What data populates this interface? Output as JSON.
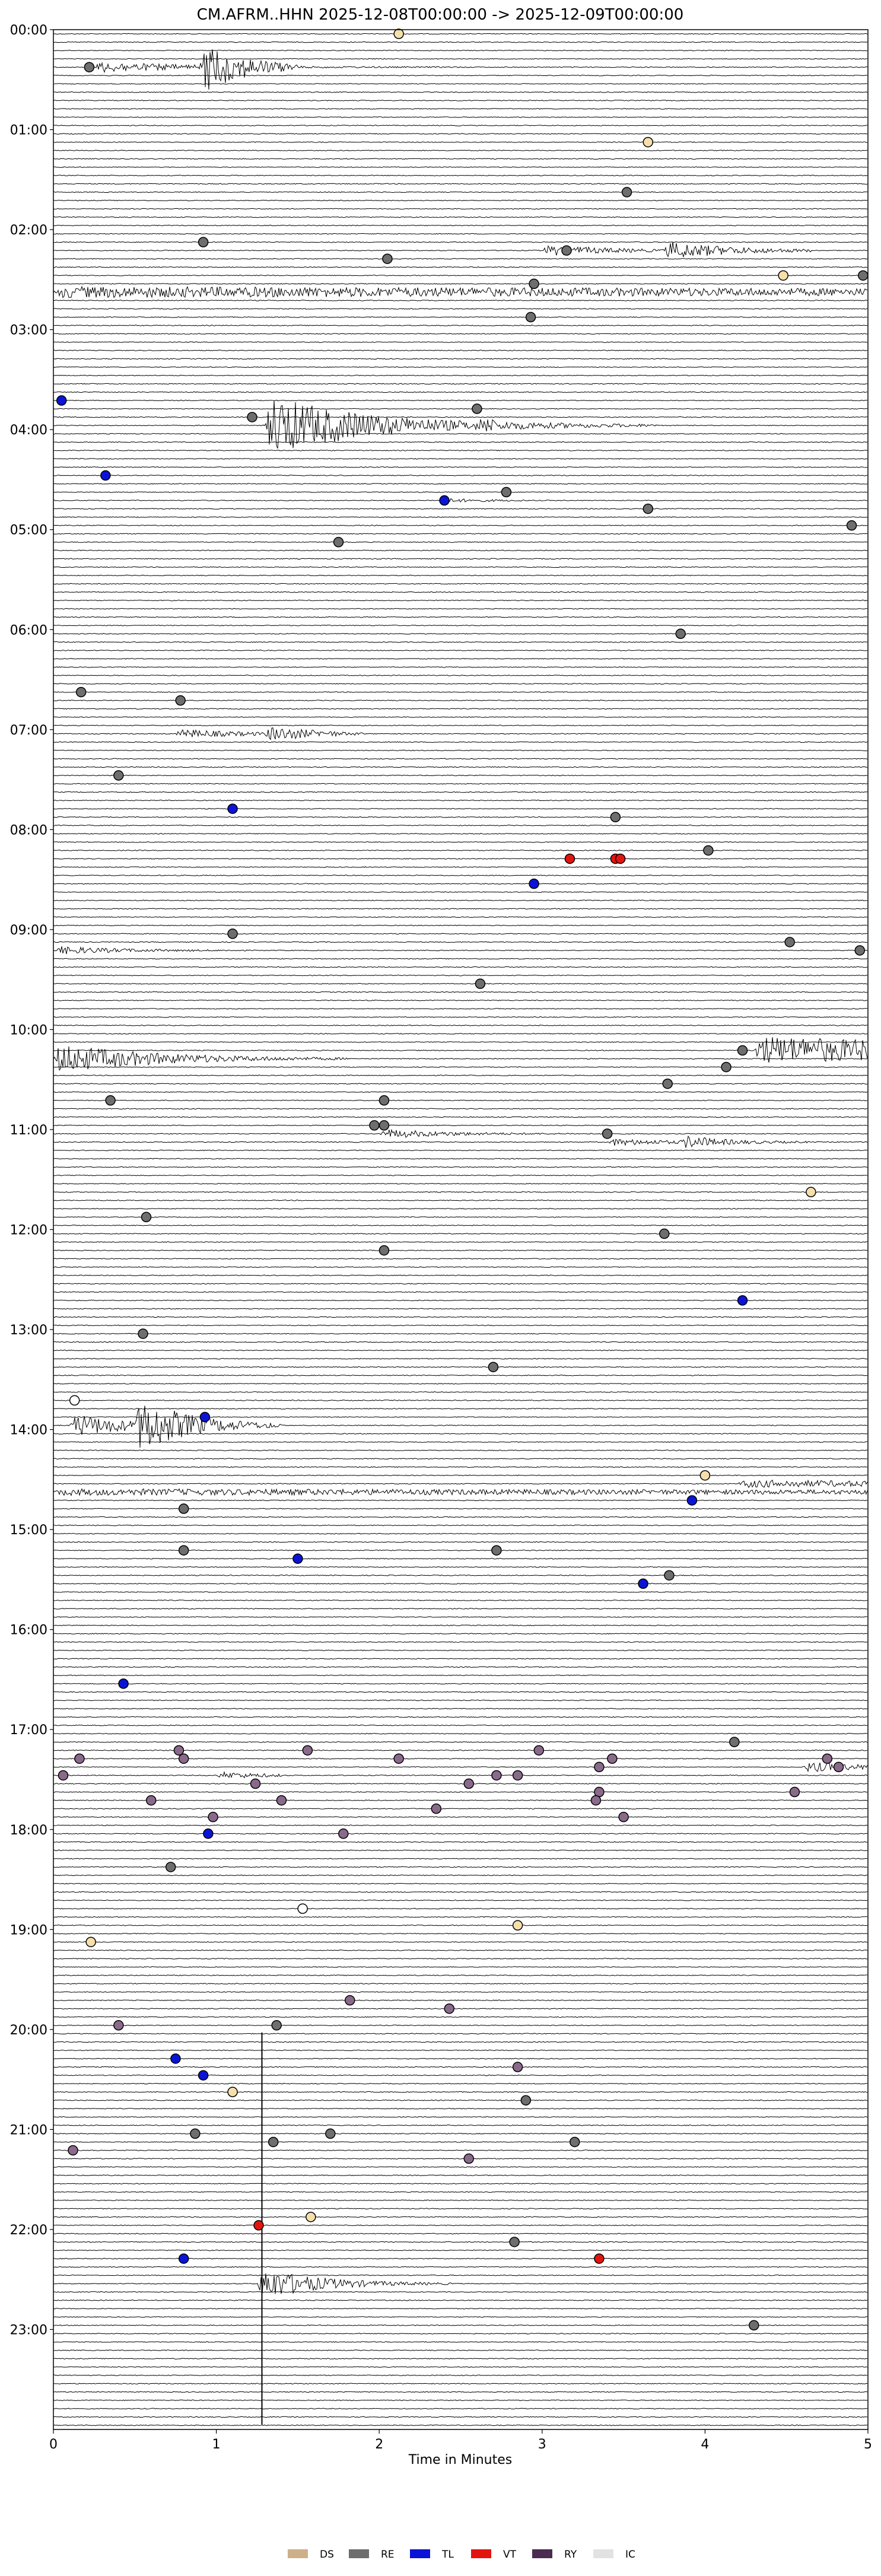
{
  "chart_data": {
    "type": "line",
    "title": "CM.AFRM..HHN  2025-12-08T00:00:00 -> 2025-12-09T00:00:00",
    "xlabel": "Time in Minutes",
    "ylabel": "",
    "xlim": [
      0,
      5
    ],
    "x_ticks": [
      "0",
      "1",
      "2",
      "3",
      "4",
      "5"
    ],
    "ylim_hours": [
      0,
      24
    ],
    "trace_minutes": 5,
    "y_ticks": [
      "00:00",
      "01:00",
      "02:00",
      "03:00",
      "04:00",
      "05:00",
      "06:00",
      "07:00",
      "08:00",
      "09:00",
      "10:00",
      "11:00",
      "12:00",
      "13:00",
      "14:00",
      "15:00",
      "16:00",
      "17:00",
      "18:00",
      "19:00",
      "20:00",
      "21:00",
      "22:00",
      "23:00"
    ],
    "grid": false,
    "legend_position": "bottom-center",
    "legend": [
      {
        "code": "DS",
        "color": "#cdb08a"
      },
      {
        "code": "RE",
        "color": "#6e6e6e"
      },
      {
        "code": "TL",
        "color": "#0b14d6"
      },
      {
        "code": "VT",
        "color": "#e3140f"
      },
      {
        "code": "RY",
        "color": "#4b2b52"
      },
      {
        "code": "IC",
        "color": "#e2e2e2"
      }
    ],
    "class_colors": {
      "DS": "#cdb08a",
      "RE": "#6e6e6e",
      "TL": "#0b14d6",
      "VT": "#e3140f",
      "RY": "#4b2b52",
      "IC": "#e2e2e2",
      "DS_light": "#f5dfaa",
      "RY_light": "#8a6a8a",
      "WH": "#ffffff"
    },
    "bursts": [
      {
        "row": 4,
        "x": 0.25,
        "amp": 9,
        "len": 2.3,
        "decay": 0.6
      },
      {
        "row": 4,
        "x": 0.9,
        "amp": 45,
        "len": 0.6,
        "decay": 0.25
      },
      {
        "row": 26,
        "x": 3.0,
        "amp": 10,
        "len": 0.8,
        "decay": 0.4
      },
      {
        "row": 26,
        "x": 3.75,
        "amp": 16,
        "len": 0.9,
        "decay": 0.4
      },
      {
        "row": 31,
        "x": 0.0,
        "amp": 9,
        "len": 5,
        "decay": 10
      },
      {
        "row": 47,
        "x": 1.3,
        "amp": 55,
        "len": 1.4,
        "decay": 0.6
      },
      {
        "row": 47,
        "x": 2.6,
        "amp": 9,
        "len": 1.1,
        "decay": 0.6
      },
      {
        "row": 56,
        "x": 2.4,
        "amp": 3,
        "len": 0.5,
        "decay": 0.3
      },
      {
        "row": 84,
        "x": 0.75,
        "amp": 8,
        "len": 1.0,
        "decay": 0.4
      },
      {
        "row": 84,
        "x": 1.3,
        "amp": 12,
        "len": 0.6,
        "decay": 0.3
      },
      {
        "row": 110,
        "x": 0.0,
        "amp": 7,
        "len": 1.2,
        "decay": 0.4
      },
      {
        "row": 123,
        "x": 0.0,
        "amp": 26,
        "len": 1.8,
        "decay": 0.6
      },
      {
        "row": 122,
        "x": 4.3,
        "amp": 24,
        "len": 0.8,
        "decay": 2
      },
      {
        "row": 132,
        "x": 2.0,
        "amp": 8,
        "len": 1.6,
        "decay": 0.4
      },
      {
        "row": 133,
        "x": 3.4,
        "amp": 6,
        "len": 0.6,
        "decay": 0.4
      },
      {
        "row": 133,
        "x": 3.85,
        "amp": 10,
        "len": 0.8,
        "decay": 0.3
      },
      {
        "row": 167,
        "x": 0.1,
        "amp": 20,
        "len": 1.3,
        "decay": 0.4
      },
      {
        "row": 167,
        "x": 0.5,
        "amp": 45,
        "len": 0.9,
        "decay": 0.3
      },
      {
        "row": 175,
        "x": 0.0,
        "amp": 5,
        "len": 5,
        "decay": 10
      },
      {
        "row": 174,
        "x": 4.2,
        "amp": 6,
        "len": 0.8,
        "decay": 2
      },
      {
        "row": 208,
        "x": 4.6,
        "amp": 9,
        "len": 0.4,
        "decay": 0.4
      },
      {
        "row": 209,
        "x": 1.0,
        "amp": 6,
        "len": 0.4,
        "decay": 0.3
      },
      {
        "row": 270,
        "x": 1.25,
        "amp": 30,
        "len": 1.2,
        "decay": 0.35
      }
    ],
    "spike": {
      "x": 1.28,
      "from_hour": 20.03,
      "to_hour": 23.95
    },
    "events": [
      {
        "row": 0,
        "x": 2.12,
        "c": "DS_light"
      },
      {
        "row": 4,
        "x": 0.22,
        "c": "RE"
      },
      {
        "row": 13,
        "x": 3.65,
        "c": "DS_light"
      },
      {
        "row": 19,
        "x": 3.52,
        "c": "RE"
      },
      {
        "row": 25,
        "x": 0.92,
        "c": "RE"
      },
      {
        "row": 27,
        "x": 2.05,
        "c": "RE"
      },
      {
        "row": 26,
        "x": 3.15,
        "c": "RE"
      },
      {
        "row": 29,
        "x": 4.48,
        "c": "DS_light"
      },
      {
        "row": 29,
        "x": 4.97,
        "c": "RE"
      },
      {
        "row": 30,
        "x": 2.95,
        "c": "RE"
      },
      {
        "row": 34,
        "x": 2.93,
        "c": "RE"
      },
      {
        "row": 44,
        "x": 0.05,
        "c": "TL"
      },
      {
        "row": 46,
        "x": 1.22,
        "c": "RE"
      },
      {
        "row": 45,
        "x": 2.6,
        "c": "RE"
      },
      {
        "row": 53,
        "x": 0.32,
        "c": "TL"
      },
      {
        "row": 55,
        "x": 2.78,
        "c": "RE"
      },
      {
        "row": 56,
        "x": 2.4,
        "c": "TL"
      },
      {
        "row": 57,
        "x": 3.65,
        "c": "RE"
      },
      {
        "row": 59,
        "x": 4.9,
        "c": "RE"
      },
      {
        "row": 61,
        "x": 1.75,
        "c": "RE"
      },
      {
        "row": 72,
        "x": 3.85,
        "c": "RE"
      },
      {
        "row": 79,
        "x": 0.17,
        "c": "RE"
      },
      {
        "row": 80,
        "x": 0.78,
        "c": "RE"
      },
      {
        "row": 89,
        "x": 0.4,
        "c": "RE"
      },
      {
        "row": 93,
        "x": 1.1,
        "c": "TL"
      },
      {
        "row": 94,
        "x": 3.45,
        "c": "RE"
      },
      {
        "row": 98,
        "x": 4.02,
        "c": "RE"
      },
      {
        "row": 99,
        "x": 3.17,
        "c": "VT"
      },
      {
        "row": 99,
        "x": 3.45,
        "c": "VT"
      },
      {
        "row": 99,
        "x": 3.48,
        "c": "VT"
      },
      {
        "row": 102,
        "x": 2.95,
        "c": "TL"
      },
      {
        "row": 108,
        "x": 1.1,
        "c": "RE"
      },
      {
        "row": 109,
        "x": 4.52,
        "c": "RE"
      },
      {
        "row": 110,
        "x": 4.95,
        "c": "RE"
      },
      {
        "row": 114,
        "x": 2.62,
        "c": "RE"
      },
      {
        "row": 122,
        "x": 4.23,
        "c": "RE"
      },
      {
        "row": 124,
        "x": 4.13,
        "c": "RE"
      },
      {
        "row": 126,
        "x": 3.77,
        "c": "RE"
      },
      {
        "row": 128,
        "x": 0.35,
        "c": "RE"
      },
      {
        "row": 128,
        "x": 2.03,
        "c": "RE"
      },
      {
        "row": 131,
        "x": 1.97,
        "c": "RE"
      },
      {
        "row": 131,
        "x": 2.03,
        "c": "RE"
      },
      {
        "row": 132,
        "x": 3.4,
        "c": "RE"
      },
      {
        "row": 139,
        "x": 4.65,
        "c": "DS_light"
      },
      {
        "row": 142,
        "x": 0.57,
        "c": "RE"
      },
      {
        "row": 144,
        "x": 3.75,
        "c": "RE"
      },
      {
        "row": 146,
        "x": 2.03,
        "c": "RE"
      },
      {
        "row": 152,
        "x": 4.23,
        "c": "TL"
      },
      {
        "row": 156,
        "x": 0.55,
        "c": "RE"
      },
      {
        "row": 160,
        "x": 2.7,
        "c": "RE"
      },
      {
        "row": 164,
        "x": 0.13,
        "c": "WH"
      },
      {
        "row": 166,
        "x": 0.93,
        "c": "TL"
      },
      {
        "row": 173,
        "x": 4.0,
        "c": "DS_light"
      },
      {
        "row": 176,
        "x": 3.92,
        "c": "TL"
      },
      {
        "row": 177,
        "x": 0.8,
        "c": "RE"
      },
      {
        "row": 182,
        "x": 0.8,
        "c": "RE"
      },
      {
        "row": 182,
        "x": 2.72,
        "c": "RE"
      },
      {
        "row": 183,
        "x": 1.5,
        "c": "TL"
      },
      {
        "row": 185,
        "x": 3.78,
        "c": "RE"
      },
      {
        "row": 186,
        "x": 3.62,
        "c": "TL"
      },
      {
        "row": 198,
        "x": 0.43,
        "c": "TL"
      },
      {
        "row": 205,
        "x": 4.18,
        "c": "RE"
      },
      {
        "row": 206,
        "x": 0.77,
        "c": "RY_light"
      },
      {
        "row": 206,
        "x": 1.56,
        "c": "RY_light"
      },
      {
        "row": 206,
        "x": 2.98,
        "c": "RY_light"
      },
      {
        "row": 207,
        "x": 0.16,
        "c": "RY_light"
      },
      {
        "row": 207,
        "x": 0.8,
        "c": "RY_light"
      },
      {
        "row": 207,
        "x": 2.12,
        "c": "RY_light"
      },
      {
        "row": 207,
        "x": 3.43,
        "c": "RY_light"
      },
      {
        "row": 207,
        "x": 4.75,
        "c": "RY_light"
      },
      {
        "row": 208,
        "x": 3.35,
        "c": "RY_light"
      },
      {
        "row": 208,
        "x": 4.82,
        "c": "RY_light"
      },
      {
        "row": 209,
        "x": 0.06,
        "c": "RY_light"
      },
      {
        "row": 209,
        "x": 2.72,
        "c": "RY_light"
      },
      {
        "row": 209,
        "x": 2.85,
        "c": "RY_light"
      },
      {
        "row": 210,
        "x": 1.24,
        "c": "RY_light"
      },
      {
        "row": 210,
        "x": 2.55,
        "c": "RY_light"
      },
      {
        "row": 211,
        "x": 3.35,
        "c": "RY_light"
      },
      {
        "row": 211,
        "x": 4.55,
        "c": "RY_light"
      },
      {
        "row": 212,
        "x": 0.6,
        "c": "RY_light"
      },
      {
        "row": 212,
        "x": 3.33,
        "c": "RY_light"
      },
      {
        "row": 212,
        "x": 1.4,
        "c": "RY_light"
      },
      {
        "row": 213,
        "x": 2.35,
        "c": "RY_light"
      },
      {
        "row": 214,
        "x": 0.98,
        "c": "RY_light"
      },
      {
        "row": 214,
        "x": 3.5,
        "c": "RY_light"
      },
      {
        "row": 216,
        "x": 0.95,
        "c": "TL"
      },
      {
        "row": 216,
        "x": 1.78,
        "c": "RY_light"
      },
      {
        "row": 220,
        "x": 0.72,
        "c": "RE"
      },
      {
        "row": 225,
        "x": 1.53,
        "c": "WH"
      },
      {
        "row": 227,
        "x": 2.85,
        "c": "DS_light"
      },
      {
        "row": 229,
        "x": 0.23,
        "c": "DS_light"
      },
      {
        "row": 236,
        "x": 1.82,
        "c": "RY_light"
      },
      {
        "row": 237,
        "x": 2.43,
        "c": "RY_light"
      },
      {
        "row": 239,
        "x": 0.4,
        "c": "RY_light"
      },
      {
        "row": 239,
        "x": 1.37,
        "c": "RE"
      },
      {
        "row": 243,
        "x": 0.75,
        "c": "TL"
      },
      {
        "row": 244,
        "x": 2.85,
        "c": "RY_light"
      },
      {
        "row": 245,
        "x": 0.92,
        "c": "TL"
      },
      {
        "row": 247,
        "x": 1.1,
        "c": "DS_light"
      },
      {
        "row": 248,
        "x": 2.9,
        "c": "RE"
      },
      {
        "row": 252,
        "x": 0.87,
        "c": "RE"
      },
      {
        "row": 252,
        "x": 1.7,
        "c": "RE"
      },
      {
        "row": 253,
        "x": 1.35,
        "c": "RE"
      },
      {
        "row": 253,
        "x": 3.2,
        "c": "RE"
      },
      {
        "row": 254,
        "x": 0.12,
        "c": "RY_light"
      },
      {
        "row": 255,
        "x": 2.55,
        "c": "RY_light"
      },
      {
        "row": 262,
        "x": 1.58,
        "c": "DS_light"
      },
      {
        "row": 263,
        "x": 1.26,
        "c": "VT"
      },
      {
        "row": 265,
        "x": 2.83,
        "c": "RE"
      },
      {
        "row": 267,
        "x": 0.8,
        "c": "TL"
      },
      {
        "row": 267,
        "x": 3.35,
        "c": "VT"
      },
      {
        "row": 275,
        "x": 4.3,
        "c": "RE"
      }
    ]
  }
}
